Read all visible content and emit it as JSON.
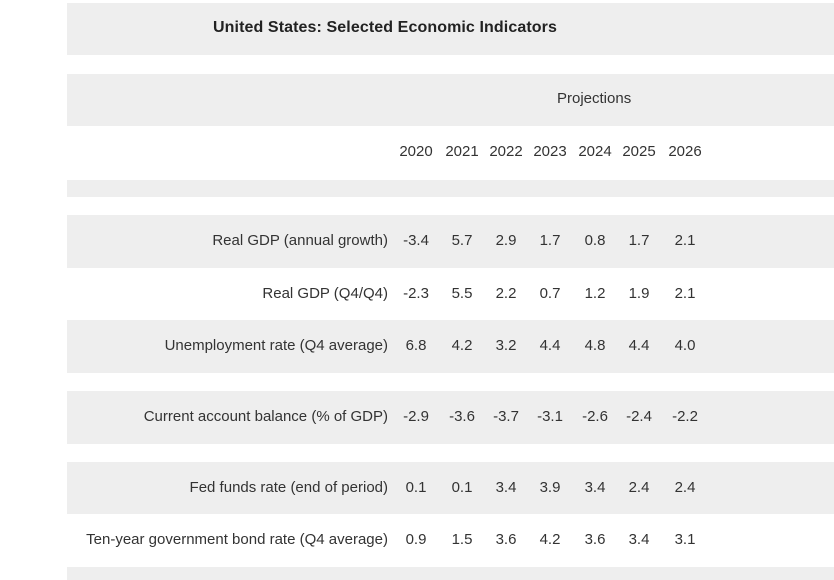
{
  "table": {
    "title": "United States: Selected Economic Indicators",
    "projections_label": "Projections",
    "years": [
      "2020",
      "2021",
      "2022",
      "2023",
      "2024",
      "2025",
      "2026"
    ],
    "rows": [
      {
        "label": "Real GDP (annual growth)",
        "values": [
          "-3.4",
          "5.7",
          "2.9",
          "1.7",
          "0.8",
          "1.7",
          "2.1"
        ]
      },
      {
        "label": "Real GDP (Q4/Q4)",
        "values": [
          "-2.3",
          "5.5",
          "2.2",
          "0.7",
          "1.2",
          "1.9",
          "2.1"
        ]
      },
      {
        "label": "Unemployment rate (Q4 average)",
        "values": [
          "6.8",
          "4.2",
          "3.2",
          "4.4",
          "4.8",
          "4.4",
          "4.0"
        ]
      },
      {
        "label": "Current account balance (% of GDP)",
        "values": [
          "-2.9",
          "-3.6",
          "-3.7",
          "-3.1",
          "-2.6",
          "-2.4",
          "-2.2"
        ]
      },
      {
        "label": "Fed funds rate (end of period)",
        "values": [
          "0.1",
          "0.1",
          "3.4",
          "3.9",
          "3.4",
          "2.4",
          "2.4"
        ]
      },
      {
        "label": "Ten-year government bond rate (Q4 average)",
        "values": [
          "0.9",
          "1.5",
          "3.6",
          "4.2",
          "3.6",
          "3.4",
          "3.1"
        ]
      }
    ]
  }
}
